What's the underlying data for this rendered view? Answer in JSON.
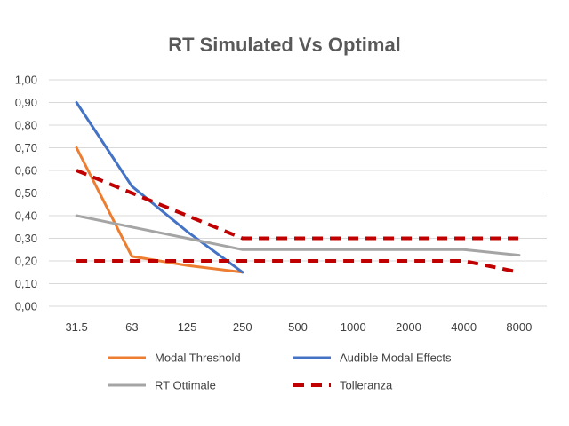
{
  "chart_data": {
    "type": "line",
    "title": "RT Simulated Vs Optimal",
    "xlabel": "",
    "ylabel": "",
    "categories": [
      "31.5",
      "63",
      "125",
      "250",
      "500",
      "1000",
      "2000",
      "4000",
      "8000"
    ],
    "y_tick_labels": [
      "0,00",
      "0,10",
      "0,20",
      "0,30",
      "0,40",
      "0,50",
      "0,60",
      "0,70",
      "0,80",
      "0,90",
      "1,00"
    ],
    "ylim": [
      0,
      1.0
    ],
    "grid": true,
    "legend_position": "bottom",
    "series": [
      {
        "name": "Modal Threshold",
        "color": "#ED7D31",
        "style": "solid",
        "values": [
          0.7,
          0.22,
          0.18,
          0.15,
          null,
          null,
          null,
          null,
          null
        ]
      },
      {
        "name": "Audible Modal Effects",
        "color": "#4472C4",
        "style": "solid",
        "values": [
          0.9,
          0.53,
          0.33,
          0.15,
          null,
          null,
          null,
          null,
          null
        ]
      },
      {
        "name": "RT Ottimale",
        "color": "#A5A5A5",
        "style": "solid",
        "values": [
          0.4,
          0.35,
          0.3,
          0.25,
          0.25,
          0.25,
          0.25,
          0.25,
          0.225
        ]
      },
      {
        "name": "Tolleranza",
        "color": "#C00000",
        "style": "dashed",
        "values": [
          0.6,
          0.5,
          0.4,
          0.3,
          0.3,
          0.3,
          0.3,
          0.3,
          0.3
        ]
      },
      {
        "name": "Tolleranza",
        "color": "#C00000",
        "style": "dashed",
        "legend": false,
        "values": [
          0.2,
          0.2,
          0.2,
          0.2,
          0.2,
          0.2,
          0.2,
          0.2,
          0.15
        ]
      }
    ]
  }
}
